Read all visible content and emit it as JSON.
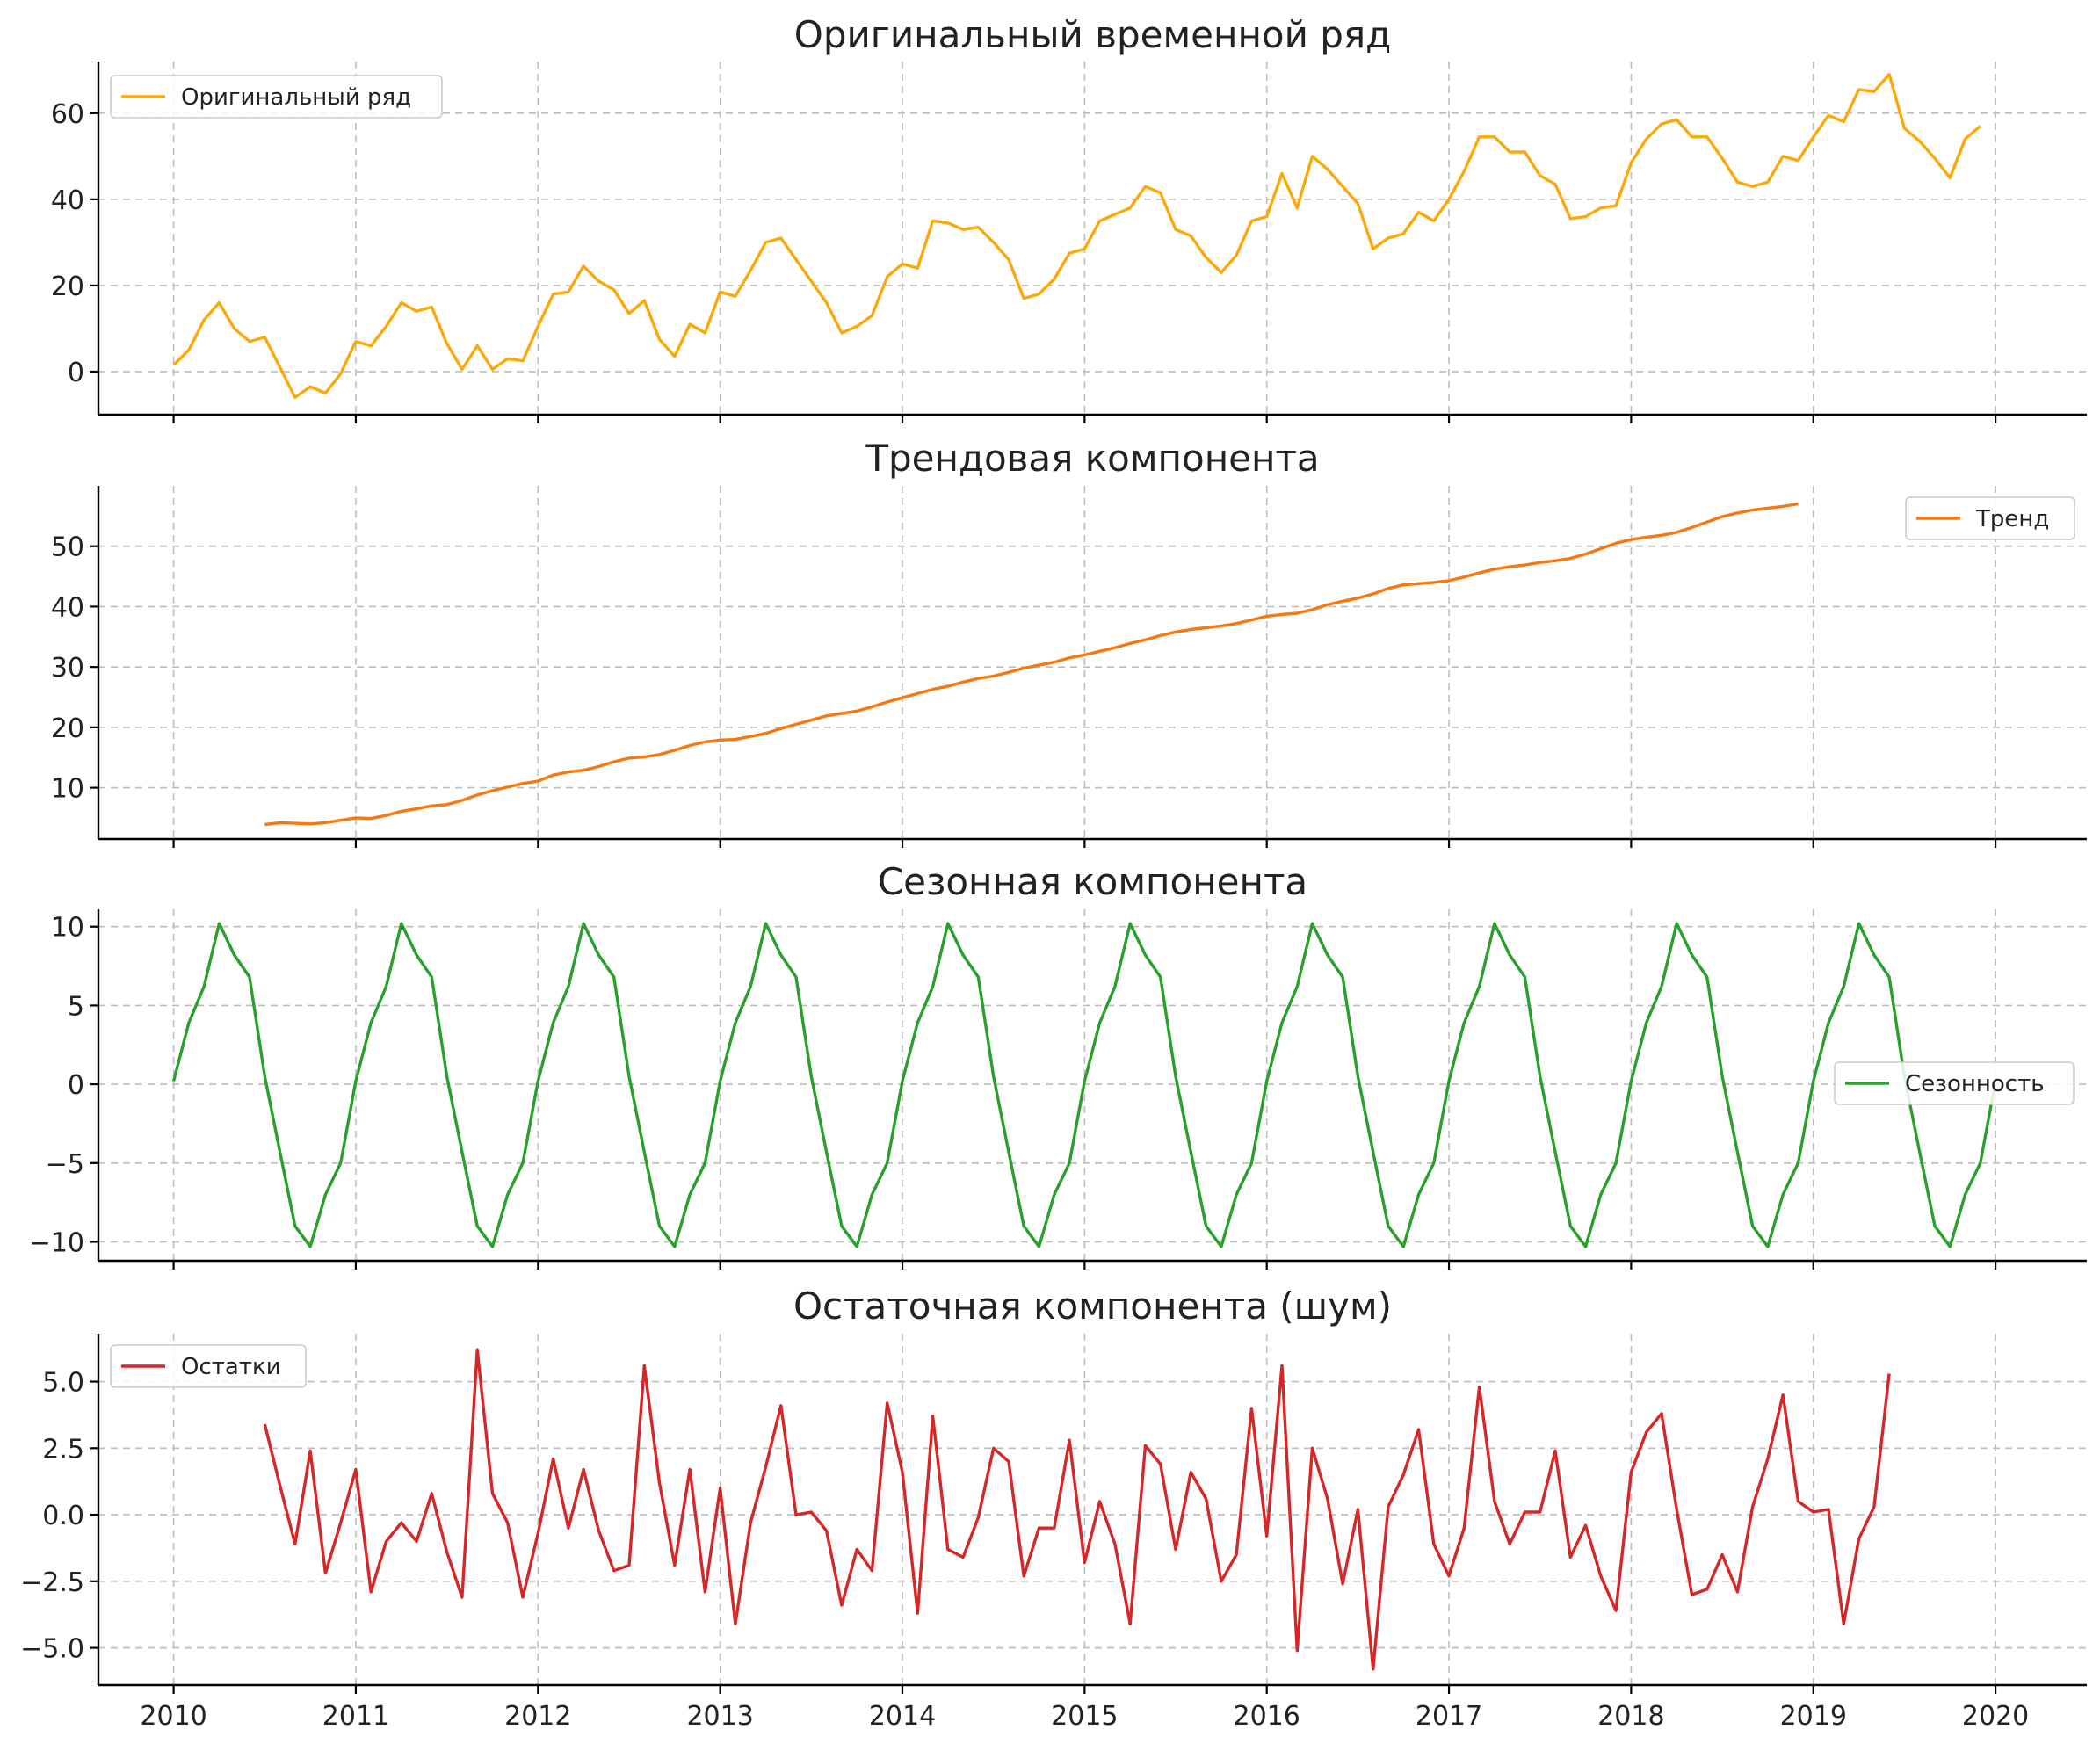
{
  "chart_data": [
    {
      "type": "line",
      "title": "Оригинальный временной ряд",
      "xlabel": "",
      "ylabel": "",
      "x_start": "2010-01",
      "x_step": "1 month",
      "xlim": [
        "2009-09",
        "2020-06"
      ],
      "ylim": [
        -10,
        72
      ],
      "yticks": [
        0,
        20,
        40,
        60
      ],
      "ytick_labels": [
        "0",
        "20",
        "40",
        "60"
      ],
      "grid": true,
      "legend_position": "top-left",
      "series": [
        {
          "name": "Оригинальный ряд",
          "color": "#FBA90A",
          "values": [
            1.5,
            5,
            12,
            16,
            10,
            7,
            8,
            1,
            -6,
            -3.5,
            -5,
            -0.5,
            7,
            6,
            10.5,
            16,
            14,
            15,
            6.5,
            0.5,
            6,
            0.5,
            3,
            2.5,
            10.5,
            18,
            18.5,
            24.5,
            21,
            19,
            13.5,
            16.5,
            7.5,
            3.5,
            11,
            9,
            18.5,
            17.5,
            23.5,
            30,
            31,
            26,
            21,
            16,
            9,
            10.5,
            13,
            22,
            25,
            24,
            35,
            34.5,
            33,
            33.5,
            30,
            26,
            17,
            18,
            21.5,
            27.5,
            28.5,
            35,
            36.5,
            38,
            43,
            41.5,
            33,
            31.5,
            26.5,
            23,
            27,
            35,
            36,
            46,
            38,
            50,
            47,
            43,
            39,
            28.5,
            31,
            32,
            37,
            35,
            40,
            46.5,
            54.5,
            54.5,
            51,
            51,
            45.5,
            43.5,
            35.5,
            36,
            38,
            38.5,
            48.5,
            54,
            57.5,
            58.5,
            54.5,
            54.5,
            49.5,
            44,
            43,
            44,
            50,
            49,
            54.5,
            59.5,
            58,
            65.5,
            65,
            69,
            56.5,
            53.5,
            49.5,
            45,
            54,
            57
          ]
        }
      ]
    },
    {
      "type": "line",
      "title": "Трендовая компонента",
      "xlabel": "",
      "ylabel": "",
      "x_start": "2010-07",
      "x_step": "1 month",
      "xlim": [
        "2009-09",
        "2020-06"
      ],
      "ylim": [
        1.5,
        60
      ],
      "yticks": [
        10,
        20,
        30,
        40,
        50
      ],
      "ytick_labels": [
        "10",
        "20",
        "30",
        "40",
        "50"
      ],
      "grid": true,
      "legend_position": "top-right",
      "series": [
        {
          "name": "Тренд",
          "color": "#F7780E",
          "values": [
            3.9,
            4.2,
            4.1,
            4.0,
            4.2,
            4.6,
            5.0,
            4.9,
            5.4,
            6.1,
            6.5,
            7.0,
            7.2,
            7.9,
            8.8,
            9.5,
            10.1,
            10.7,
            11.1,
            12.1,
            12.6,
            12.9,
            13.5,
            14.3,
            14.9,
            15.1,
            15.5,
            16.2,
            17.0,
            17.6,
            17.9,
            18.0,
            18.5,
            19.0,
            19.8,
            20.5,
            21.2,
            21.9,
            22.3,
            22.7,
            23.4,
            24.2,
            24.9,
            25.6,
            26.3,
            26.8,
            27.5,
            28.1,
            28.5,
            29.1,
            29.8,
            30.3,
            30.8,
            31.5,
            32.0,
            32.6,
            33.2,
            33.9,
            34.5,
            35.2,
            35.8,
            36.2,
            36.5,
            36.8,
            37.2,
            37.8,
            38.4,
            38.7,
            38.9,
            39.5,
            40.3,
            40.9,
            41.4,
            42.1,
            43.0,
            43.6,
            43.8,
            44.0,
            44.3,
            44.9,
            45.6,
            46.2,
            46.6,
            46.9,
            47.3,
            47.6,
            48.0,
            48.7,
            49.6,
            50.5,
            51.1,
            51.5,
            51.8,
            52.3,
            53.1,
            54.0,
            54.9,
            55.5,
            56.0,
            56.3,
            56.6,
            57.0
          ]
        }
      ]
    },
    {
      "type": "line",
      "title": "Сезонная компонента",
      "xlabel": "",
      "ylabel": "",
      "x_start": "2010-01",
      "x_step": "1 month",
      "xlim": [
        "2009-09",
        "2020-06"
      ],
      "ylim": [
        -11.2,
        11.1
      ],
      "yticks": [
        -10,
        -5,
        0,
        5,
        10
      ],
      "ytick_labels": [
        "−10",
        "−5",
        "0",
        "5",
        "10"
      ],
      "grid": true,
      "legend_position": "center-right",
      "series": [
        {
          "name": "Сезонность",
          "color": "#2AA02C",
          "season_values": [
            0.2,
            3.9,
            6.2,
            10.2,
            8.2,
            6.8,
            0.5,
            -4.3,
            -9.0,
            -10.3,
            -7.0,
            -5.0
          ],
          "cycles": 10,
          "extra_values": [
            0.2
          ]
        }
      ]
    },
    {
      "type": "line",
      "title": "Остаточная компонента (шум)",
      "xlabel": "",
      "ylabel": "",
      "x_start": "2010-07",
      "x_step": "1 month",
      "xlim": [
        "2009-09",
        "2020-06"
      ],
      "ylim": [
        -6.4,
        6.8
      ],
      "yticks": [
        -5.0,
        -2.5,
        0.0,
        2.5,
        5.0
      ],
      "ytick_labels": [
        "−5.0",
        "−2.5",
        "0.0",
        "2.5",
        "5.0"
      ],
      "grid": true,
      "legend_position": "top-left",
      "series": [
        {
          "name": "Остатки",
          "color": "#D62728",
          "values": [
            3.4,
            1.1,
            -1.1,
            2.4,
            -2.2,
            -0.3,
            1.7,
            -2.9,
            -1.0,
            -0.3,
            -1.0,
            0.8,
            -1.4,
            -3.1,
            6.2,
            0.8,
            -0.3,
            -3.1,
            -0.7,
            2.1,
            -0.5,
            1.7,
            -0.6,
            -2.1,
            -1.9,
            5.6,
            1.2,
            -1.9,
            1.7,
            -2.9,
            1.0,
            -4.1,
            -0.3,
            1.8,
            4.1,
            0.0,
            0.1,
            -0.6,
            -3.4,
            -1.3,
            -2.1,
            4.2,
            1.6,
            -3.7,
            3.7,
            -1.3,
            -1.6,
            -0.1,
            2.5,
            2.0,
            -2.3,
            -0.5,
            -0.5,
            2.8,
            -1.8,
            0.5,
            -1.1,
            -4.1,
            2.6,
            1.9,
            -1.3,
            1.6,
            0.6,
            -2.5,
            -1.5,
            4.0,
            -0.8,
            5.6,
            -5.1,
            2.5,
            0.6,
            -2.6,
            0.2,
            -5.8,
            0.3,
            1.5,
            3.2,
            -1.1,
            -2.3,
            -0.5,
            4.8,
            0.5,
            -1.1,
            0.1,
            0.1,
            2.4,
            -1.6,
            -0.4,
            -2.3,
            -3.6,
            1.6,
            3.1,
            3.8,
            0.2,
            -3.0,
            -2.8,
            -1.5,
            -2.9,
            0.3,
            2.1,
            4.5,
            0.5,
            0.1,
            0.2,
            -4.1,
            -0.9,
            0.3,
            5.3
          ]
        }
      ]
    }
  ],
  "xaxis": {
    "tick_labels": [
      "2010",
      "2011",
      "2012",
      "2013",
      "2014",
      "2015",
      "2016",
      "2017",
      "2018",
      "2019",
      "2020"
    ]
  }
}
